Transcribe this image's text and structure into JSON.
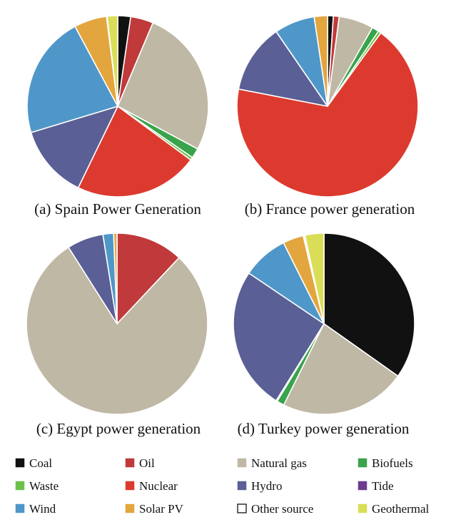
{
  "legend": [
    {
      "name": "Coal",
      "color": "#111111"
    },
    {
      "name": "Oil",
      "color": "#c0393b"
    },
    {
      "name": "Natural gas",
      "color": "#bfb8a5"
    },
    {
      "name": "Biofuels",
      "color": "#3aa34b"
    },
    {
      "name": "Waste",
      "color": "#6cc04a"
    },
    {
      "name": "Nuclear",
      "color": "#dd3a2f"
    },
    {
      "name": "Hydro",
      "color": "#5a5f95"
    },
    {
      "name": "Tide",
      "color": "#6c3a8e"
    },
    {
      "name": "Wind",
      "color": "#4f97c9"
    },
    {
      "name": "Solar PV",
      "color": "#e3a53d"
    },
    {
      "name": "Other source",
      "color": "#ffffff"
    },
    {
      "name": "Geothermal",
      "color": "#d9de56"
    }
  ],
  "chart_data": [
    {
      "type": "pie",
      "title": "(a) Spain Power Generation",
      "start_angle_deg": 0,
      "slices": [
        {
          "source": "Coal",
          "value": 2.2
        },
        {
          "source": "Oil",
          "value": 3.9
        },
        {
          "source": "Natural gas",
          "value": 25.4
        },
        {
          "source": "Biofuels",
          "value": 1.7
        },
        {
          "source": "Waste",
          "value": 0.5
        },
        {
          "source": "Nuclear",
          "value": 21.2
        },
        {
          "source": "Hydro",
          "value": 12.6
        },
        {
          "source": "Wind",
          "value": 21.0
        },
        {
          "source": "Solar PV",
          "value": 5.6
        },
        {
          "source": "Other source",
          "value": 0.1
        },
        {
          "source": "Geothermal",
          "value": 1.8
        }
      ]
    },
    {
      "type": "pie",
      "title": "(b) France power generation",
      "start_angle_deg": 0,
      "slices": [
        {
          "source": "Coal",
          "value": 1.0
        },
        {
          "source": "Oil",
          "value": 1.0
        },
        {
          "source": "Natural gas",
          "value": 6.0
        },
        {
          "source": "Biofuels",
          "value": 1.2
        },
        {
          "source": "Waste",
          "value": 0.5
        },
        {
          "source": "Nuclear",
          "value": 66.0
        },
        {
          "source": "Hydro",
          "value": 12.0
        },
        {
          "source": "Wind",
          "value": 7.0
        },
        {
          "source": "Solar PV",
          "value": 2.3
        }
      ]
    },
    {
      "type": "pie",
      "title": "(c) Egypt power generation",
      "start_angle_deg": 0,
      "slices": [
        {
          "source": "Oil",
          "value": 12.0
        },
        {
          "source": "Natural gas",
          "value": 79.0
        },
        {
          "source": "Hydro",
          "value": 6.5
        },
        {
          "source": "Wind",
          "value": 1.9
        },
        {
          "source": "Solar PV",
          "value": 0.6
        }
      ]
    },
    {
      "type": "pie",
      "title": "(d) Turkey power generation",
      "start_angle_deg": 0,
      "slices": [
        {
          "source": "Coal",
          "value": 34.0
        },
        {
          "source": "Natural gas",
          "value": 22.0
        },
        {
          "source": "Biofuels",
          "value": 1.3
        },
        {
          "source": "Waste",
          "value": 0.2
        },
        {
          "source": "Hydro",
          "value": 25.0
        },
        {
          "source": "Wind",
          "value": 8.0
        },
        {
          "source": "Solar PV",
          "value": 3.6
        },
        {
          "source": "Other source",
          "value": 0.3
        },
        {
          "source": "Geothermal",
          "value": 3.3
        }
      ]
    }
  ]
}
